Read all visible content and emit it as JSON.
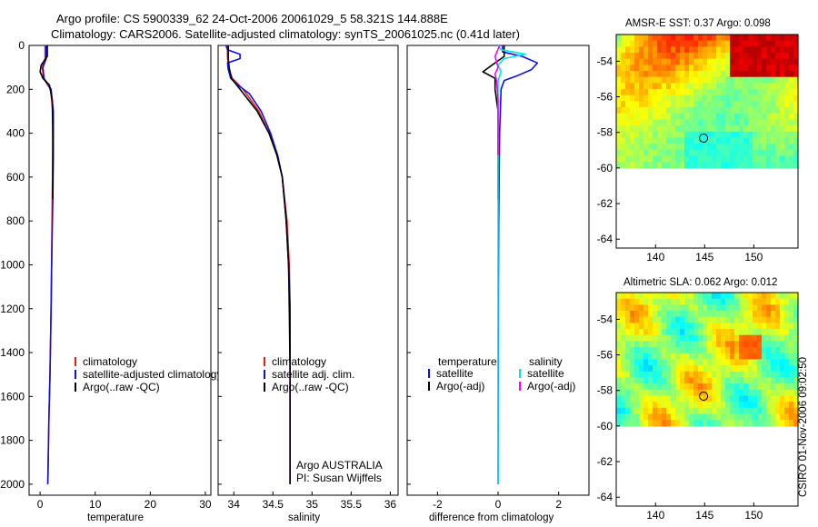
{
  "figure": {
    "title_line1": "Argo profile: CS 5900339_62 24-Oct-2006 20061029_5 58.321S 144.888E",
    "title_line2": "Climatology: CARS2006. Satellite-adjusted climatology: synTS_20061025.nc (0.41d later)",
    "stamp": "CSIRO 01-Nov-2006 09:02:50"
  },
  "colors": {
    "climatology": "#e02020",
    "satellite": "#1010e0",
    "argo": "#000000",
    "salinity_satellite": "#00e5e5",
    "salinity_argo": "#ff00ff"
  },
  "chart_data": [
    {
      "type": "line",
      "id": "temperature",
      "xlabel": "temperature",
      "ylabel": "",
      "xlim": [
        -2,
        31
      ],
      "ylim": [
        2050,
        0
      ],
      "xticks": [
        0,
        10,
        20,
        30
      ],
      "yticks": [
        0,
        200,
        400,
        600,
        800,
        1000,
        1200,
        1400,
        1600,
        1800,
        2000
      ],
      "legend": [
        {
          "label": "climatology",
          "color": "#e02020"
        },
        {
          "label": "satellite-adjusted climatology",
          "color": "#1010e0"
        },
        {
          "label": "Argo(..raw -QC)",
          "color": "#000000"
        }
      ],
      "series": [
        {
          "name": "climatology",
          "color": "#e02020",
          "points": [
            [
              0.9,
              0
            ],
            [
              0.9,
              60
            ],
            [
              0.4,
              100
            ],
            [
              0.6,
              150
            ],
            [
              1.9,
              200
            ],
            [
              2.3,
              300
            ],
            [
              2.3,
              500
            ],
            [
              2.2,
              700
            ],
            [
              2.1,
              1000
            ],
            [
              2.0,
              1200
            ],
            [
              1.8,
              1500
            ],
            [
              1.6,
              1700
            ],
            [
              1.4,
              2000
            ]
          ]
        },
        {
          "name": "satellite-adjusted climatology",
          "color": "#1010e0",
          "points": [
            [
              1.1,
              0
            ],
            [
              1.1,
              60
            ],
            [
              0.5,
              100
            ],
            [
              0.7,
              150
            ],
            [
              2.0,
              200
            ],
            [
              2.4,
              300
            ],
            [
              2.4,
              500
            ],
            [
              2.3,
              700
            ],
            [
              2.1,
              1000
            ],
            [
              2.0,
              1200
            ],
            [
              1.8,
              1500
            ],
            [
              1.6,
              1700
            ],
            [
              1.4,
              2000
            ]
          ]
        },
        {
          "name": "Argo(..raw -QC)",
          "color": "#000000",
          "points": [
            [
              1.3,
              0
            ],
            [
              1.3,
              50
            ],
            [
              0.2,
              90
            ],
            [
              0.0,
              120
            ],
            [
              0.5,
              150
            ],
            [
              1.7,
              180
            ],
            [
              2.2,
              250
            ],
            [
              2.3,
              400
            ],
            [
              2.3,
              700
            ]
          ]
        }
      ]
    },
    {
      "type": "line",
      "id": "salinity",
      "xlabel": "salinity",
      "ylabel": "",
      "xlim": [
        33.8,
        36.1
      ],
      "ylim": [
        2050,
        0
      ],
      "xticks": [
        34,
        34.5,
        35,
        35.5,
        36
      ],
      "yticks": [
        0,
        200,
        400,
        600,
        800,
        1000,
        1200,
        1400,
        1600,
        1800,
        2000
      ],
      "legend": [
        {
          "label": "climatology",
          "color": "#e02020"
        },
        {
          "label": "satellite adj. clim.",
          "color": "#1010e0"
        },
        {
          "label": "Argo(..raw -QC)",
          "color": "#000000"
        }
      ],
      "annotation_lines": [
        "Argo AUSTRALIA",
        "PI: Susan Wijffels"
      ],
      "series": [
        {
          "name": "climatology",
          "color": "#e02020",
          "points": [
            [
              33.92,
              0
            ],
            [
              33.92,
              50
            ],
            [
              33.93,
              100
            ],
            [
              33.98,
              150
            ],
            [
              34.12,
              200
            ],
            [
              34.32,
              300
            ],
            [
              34.45,
              400
            ],
            [
              34.56,
              500
            ],
            [
              34.62,
              600
            ],
            [
              34.68,
              800
            ],
            [
              34.71,
              1000
            ],
            [
              34.72,
              1200
            ],
            [
              34.72,
              1500
            ],
            [
              34.72,
              2000
            ]
          ]
        },
        {
          "name": "satellite adj. clim.",
          "color": "#1010e0",
          "points": [
            [
              33.9,
              0
            ],
            [
              33.92,
              20
            ],
            [
              34.08,
              40
            ],
            [
              34.08,
              60
            ],
            [
              33.92,
              80
            ],
            [
              33.93,
              110
            ],
            [
              33.96,
              150
            ],
            [
              34.05,
              180
            ],
            [
              34.2,
              220
            ],
            [
              34.35,
              300
            ],
            [
              34.47,
              400
            ],
            [
              34.56,
              500
            ],
            [
              34.62,
              600
            ],
            [
              34.67,
              800
            ],
            [
              34.7,
              1000
            ],
            [
              34.72,
              1200
            ],
            [
              34.72,
              1500
            ],
            [
              34.72,
              2000
            ]
          ]
        },
        {
          "name": "Argo(..raw -QC)",
          "color": "#000000",
          "points": [
            [
              33.93,
              0
            ],
            [
              33.93,
              60
            ],
            [
              33.94,
              100
            ],
            [
              33.97,
              150
            ],
            [
              34.08,
              200
            ],
            [
              34.3,
              300
            ],
            [
              34.45,
              400
            ],
            [
              34.55,
              500
            ],
            [
              34.62,
              600
            ],
            [
              34.67,
              800
            ],
            [
              34.7,
              1000
            ],
            [
              34.71,
              1200
            ],
            [
              34.72,
              1500
            ],
            [
              34.72,
              2000
            ]
          ]
        }
      ]
    },
    {
      "type": "line",
      "id": "difference",
      "xlabel": "difference from climatology",
      "ylabel": "",
      "xlim": [
        -3,
        3
      ],
      "ylim": [
        2050,
        0
      ],
      "xticks": [
        -2,
        0,
        2
      ],
      "yticks": [
        0,
        200,
        400,
        600,
        800,
        1000,
        1200,
        1400,
        1600,
        1800,
        2000
      ],
      "legend_temperature": {
        "heading": "temperature",
        "items": [
          {
            "label": "satellite",
            "color": "#1010e0"
          },
          {
            "label": "Argo(-adj)",
            "color": "#000000"
          }
        ]
      },
      "legend_salinity": {
        "heading": "salinity",
        "items": [
          {
            "label": "satellite",
            "color": "#00e5e5"
          },
          {
            "label": "Argo(-adj)",
            "color": "#ff00ff"
          }
        ]
      },
      "series": [
        {
          "name": "temperature satellite",
          "color": "#1010e0",
          "points": [
            [
              0.15,
              0
            ],
            [
              0.15,
              30
            ],
            [
              0.8,
              50
            ],
            [
              1.3,
              80
            ],
            [
              1.1,
              110
            ],
            [
              0.6,
              140
            ],
            [
              0.2,
              160
            ],
            [
              0.1,
              200
            ],
            [
              0.05,
              400
            ],
            [
              0.02,
              800
            ],
            [
              0.01,
              1200
            ],
            [
              0.0,
              2000
            ]
          ]
        },
        {
          "name": "temperature Argo(-adj)",
          "color": "#000000",
          "points": [
            [
              0.2,
              0
            ],
            [
              0.2,
              50
            ],
            [
              -0.2,
              90
            ],
            [
              -0.5,
              120
            ],
            [
              -0.1,
              150
            ],
            [
              -0.1,
              200
            ],
            [
              0.0,
              300
            ],
            [
              0.0,
              700
            ]
          ]
        },
        {
          "name": "salinity satellite",
          "color": "#00e5e5",
          "points": [
            [
              0.0,
              0
            ],
            [
              0.1,
              20
            ],
            [
              0.9,
              40
            ],
            [
              0.2,
              60
            ],
            [
              0.0,
              90
            ],
            [
              0.1,
              120
            ],
            [
              0.0,
              160
            ],
            [
              0.0,
              400
            ],
            [
              0.0,
              1000
            ],
            [
              0.0,
              2000
            ]
          ]
        },
        {
          "name": "salinity Argo(-adj)",
          "color": "#ff00ff",
          "points": [
            [
              0.05,
              0
            ],
            [
              -0.1,
              50
            ],
            [
              0.0,
              100
            ],
            [
              -0.1,
              130
            ],
            [
              -0.05,
              160
            ],
            [
              0.0,
              250
            ],
            [
              0.0,
              500
            ]
          ]
        }
      ]
    },
    {
      "type": "heatmap",
      "id": "sst_map",
      "title": "AMSR-E SST: 0.37 Argo: 0.098",
      "xlim": [
        136,
        154.5
      ],
      "ylim": [
        -64.5,
        -52.5
      ],
      "xticks": [
        140,
        145,
        150
      ],
      "yticks": [
        -54,
        -56,
        -58,
        -60,
        -62,
        -64
      ],
      "data_extent": {
        "lon": [
          136,
          154.5
        ],
        "lat": [
          -60,
          -52.5
        ]
      },
      "argo_position": {
        "lon": 144.888,
        "lat": -58.321
      }
    },
    {
      "type": "heatmap",
      "id": "sla_map",
      "title": "Altimetric SLA: 0.062 Argo: 0.012",
      "xlim": [
        136,
        154.5
      ],
      "ylim": [
        -64.5,
        -52.5
      ],
      "xticks": [
        140,
        145,
        150
      ],
      "yticks": [
        -54,
        -56,
        -58,
        -60,
        -62,
        -64
      ],
      "data_extent": {
        "lon": [
          136,
          154.5
        ],
        "lat": [
          -60,
          -52.5
        ]
      },
      "argo_position": {
        "lon": 144.888,
        "lat": -58.321
      }
    }
  ]
}
